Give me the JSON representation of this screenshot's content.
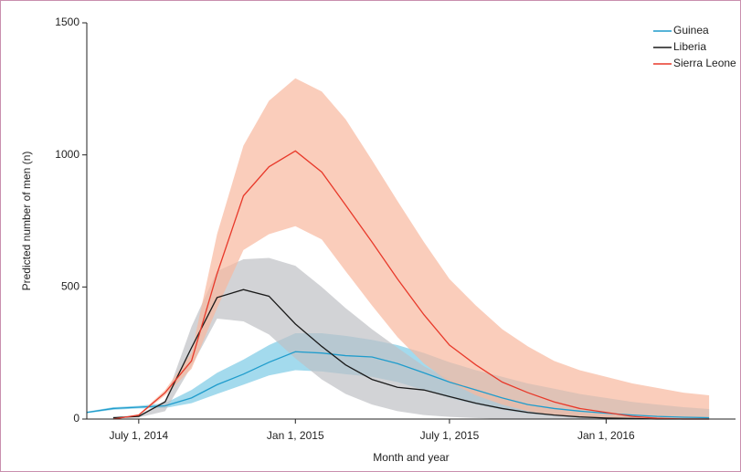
{
  "chart_data": {
    "type": "line",
    "x": [
      "2014-05-01",
      "2014-06-01",
      "2014-07-01",
      "2014-08-01",
      "2014-09-01",
      "2014-10-01",
      "2014-11-01",
      "2014-12-01",
      "2015-01-01",
      "2015-02-01",
      "2015-03-01",
      "2015-04-01",
      "2015-05-01",
      "2015-06-01",
      "2015-07-01",
      "2015-08-01",
      "2015-09-01",
      "2015-10-01",
      "2015-11-01",
      "2015-12-01",
      "2016-01-01",
      "2016-02-01",
      "2016-03-01",
      "2016-04-01",
      "2016-05-01"
    ],
    "xlim": [
      "2014-05-01",
      "2016-06-01"
    ],
    "xticks": [
      {
        "value": "2014-07-01",
        "label": "July 1, 2014"
      },
      {
        "value": "2015-01-01",
        "label": "Jan 1, 2015"
      },
      {
        "value": "2015-07-01",
        "label": "July 1, 2015"
      },
      {
        "value": "2016-01-01",
        "label": "Jan 1, 2016"
      }
    ],
    "ylim": [
      0,
      1500
    ],
    "yticks": [
      0,
      500,
      1000,
      1500
    ],
    "xlabel": "Month and year",
    "ylabel": "Predicted number of men (n)",
    "legend": "upper right",
    "series": [
      {
        "name": "Guinea",
        "color": "#1f9ccc",
        "band_color": "#7ccbe6",
        "values": [
          25,
          40,
          45,
          50,
          80,
          130,
          170,
          215,
          255,
          250,
          240,
          235,
          210,
          175,
          140,
          110,
          80,
          55,
          40,
          30,
          22,
          15,
          10,
          7,
          5
        ],
        "lower": [
          22,
          35,
          40,
          42,
          60,
          95,
          130,
          165,
          185,
          180,
          170,
          160,
          140,
          110,
          80,
          55,
          35,
          20,
          12,
          8,
          5,
          3,
          2,
          1,
          1
        ],
        "upper": [
          28,
          45,
          50,
          60,
          110,
          175,
          225,
          280,
          325,
          325,
          315,
          300,
          280,
          250,
          215,
          185,
          160,
          135,
          115,
          95,
          80,
          65,
          55,
          45,
          38
        ]
      },
      {
        "name": "Liberia",
        "color": "#1a1a1a",
        "band_color": "#bfc1c4",
        "values": [
          null,
          5,
          10,
          65,
          270,
          460,
          490,
          465,
          360,
          275,
          205,
          150,
          120,
          110,
          85,
          60,
          40,
          25,
          15,
          8,
          4,
          2,
          0,
          0,
          0
        ],
        "lower": [
          null,
          3,
          6,
          30,
          200,
          380,
          370,
          320,
          230,
          150,
          95,
          55,
          30,
          15,
          8,
          4,
          0,
          0,
          0,
          0,
          0,
          0,
          0,
          0,
          0
        ],
        "upper": [
          null,
          8,
          15,
          70,
          350,
          560,
          605,
          610,
          580,
          500,
          420,
          340,
          270,
          200,
          150,
          110,
          80,
          55,
          40,
          25,
          15,
          8,
          3,
          0,
          0
        ]
      },
      {
        "name": "Sierra Leone",
        "color": "#e8392a",
        "band_color": "#f8b89e",
        "values": [
          null,
          0,
          15,
          100,
          220,
          550,
          845,
          955,
          1015,
          935,
          810,
          670,
          530,
          395,
          280,
          205,
          140,
          100,
          65,
          40,
          25,
          10,
          3,
          0,
          0
        ],
        "lower": [
          null,
          0,
          12,
          90,
          190,
          420,
          640,
          700,
          730,
          680,
          560,
          430,
          310,
          210,
          140,
          90,
          55,
          30,
          15,
          8,
          4,
          2,
          0,
          0,
          0
        ],
        "upper": [
          null,
          0,
          18,
          110,
          250,
          700,
          1035,
          1205,
          1290,
          1240,
          1135,
          980,
          825,
          670,
          530,
          430,
          340,
          275,
          220,
          185,
          160,
          135,
          118,
          100,
          90
        ]
      }
    ]
  }
}
